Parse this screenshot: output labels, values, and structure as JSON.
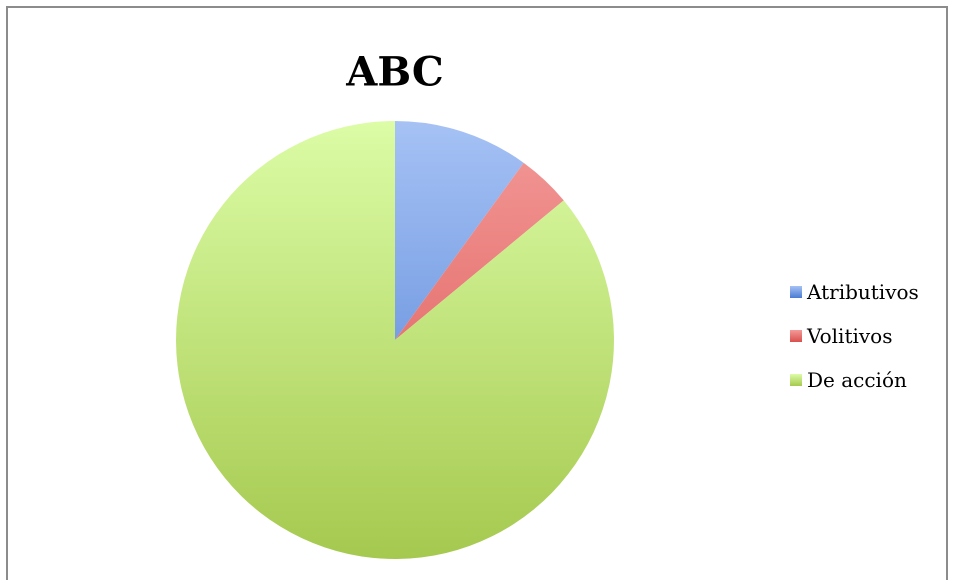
{
  "chart_data": {
    "type": "pie",
    "title": "ABC",
    "slices": [
      {
        "label": "Atributivos",
        "value": 10,
        "color": "#4f81bd",
        "light": "#a6c2f5",
        "dark": "#4a7bd1"
      },
      {
        "label": "Volitivos",
        "value": 4,
        "color": "#c0504d",
        "light": "#f39a98",
        "dark": "#d9504d"
      },
      {
        "label": "De acción",
        "value": 86,
        "color": "#9bbb59",
        "light": "#dcfca6",
        "dark": "#a5c94f"
      }
    ],
    "legend_position": "right"
  }
}
